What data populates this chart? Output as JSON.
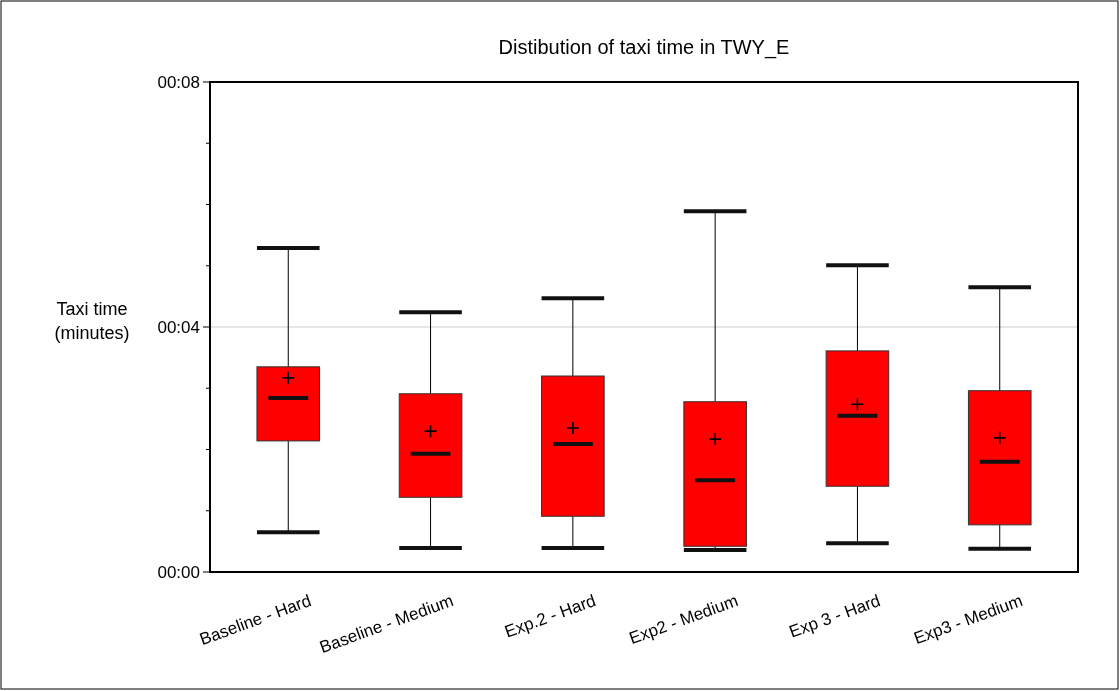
{
  "chart_data": {
    "type": "box",
    "title": "Distibution of taxi time in TWY_E",
    "ylabel": "Taxi time\n(minutes)",
    "categories": [
      "Baseline - Hard",
      "Baseline - Medium",
      "Exp.2 - Hard",
      "Exp2 - Medium",
      "Exp 3 - Hard",
      "Exp3 - Medium"
    ],
    "color": "#ff0000",
    "boxes": [
      {
        "low": 0.65,
        "q1": 2.14,
        "median": 2.84,
        "q3": 3.35,
        "high": 5.29,
        "mean": 3.17
      },
      {
        "low": 0.39,
        "q1": 1.22,
        "median": 1.93,
        "q3": 2.91,
        "high": 4.24,
        "mean": 2.3
      },
      {
        "low": 0.39,
        "q1": 0.91,
        "median": 2.09,
        "q3": 3.2,
        "high": 4.47,
        "mean": 2.35
      },
      {
        "low": 0.36,
        "q1": 0.42,
        "median": 1.5,
        "q3": 2.78,
        "high": 5.89,
        "mean": 2.17
      },
      {
        "low": 0.47,
        "q1": 1.4,
        "median": 2.55,
        "q3": 3.61,
        "high": 5.01,
        "mean": 2.74
      },
      {
        "low": 0.38,
        "q1": 0.77,
        "median": 1.8,
        "q3": 2.96,
        "high": 4.65,
        "mean": 2.19
      }
    ],
    "ylim": [
      0,
      8
    ],
    "yticks": [
      {
        "value": 0,
        "label": "00:00"
      },
      {
        "value": 1,
        "label": null
      },
      {
        "value": 2,
        "label": null
      },
      {
        "value": 3,
        "label": null
      },
      {
        "value": 4,
        "label": "00:04"
      },
      {
        "value": 5,
        "label": null
      },
      {
        "value": 6,
        "label": null
      },
      {
        "value": 7,
        "label": null
      },
      {
        "value": 8,
        "label": "00:08"
      }
    ],
    "grid": "y",
    "marker": "cross"
  }
}
